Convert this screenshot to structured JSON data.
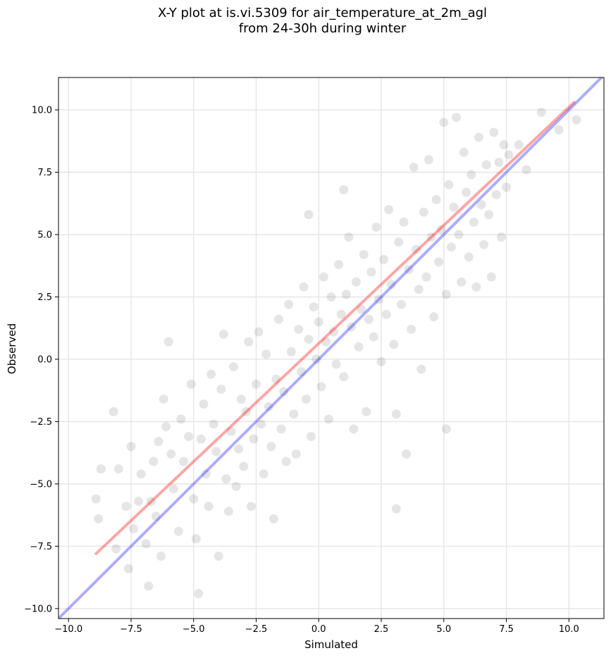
{
  "chart_data": {
    "type": "scatter",
    "title": "X-Y plot at is.vi.5309 for air_temperature_at_2m_agl",
    "subtitle": "from 24-30h during winter",
    "xlabel": "Simulated",
    "ylabel": "Observed",
    "xlim": [
      -10.4,
      11.4
    ],
    "ylim": [
      -10.4,
      11.3
    ],
    "xticks": [
      -10.0,
      -7.5,
      -5.0,
      -2.5,
      0.0,
      2.5,
      5.0,
      7.5,
      10.0
    ],
    "yticks": [
      -10.0,
      -7.5,
      -5.0,
      -2.5,
      0.0,
      2.5,
      5.0,
      7.5,
      10.0
    ],
    "xtick_labels": [
      "−10.0",
      "−7.5",
      "−5.0",
      "−2.5",
      "0.0",
      "2.5",
      "5.0",
      "7.5",
      "10.0"
    ],
    "ytick_labels": [
      "−10.0",
      "−7.5",
      "−5.0",
      "−2.5",
      "0.0",
      "2.5",
      "5.0",
      "7.5",
      "10.0"
    ],
    "grid": true,
    "point_color": "#000000",
    "point_alpha": 0.1,
    "points": [
      [
        -8.9,
        -5.6
      ],
      [
        -8.8,
        -6.4
      ],
      [
        -8.7,
        -4.4
      ],
      [
        -8.2,
        -2.1
      ],
      [
        -8.1,
        -7.6
      ],
      [
        -8.0,
        -4.4
      ],
      [
        -7.7,
        -5.9
      ],
      [
        -7.6,
        -8.4
      ],
      [
        -7.5,
        -3.5
      ],
      [
        -7.4,
        -6.8
      ],
      [
        -7.2,
        -5.7
      ],
      [
        -7.1,
        -4.6
      ],
      [
        -6.9,
        -7.4
      ],
      [
        -6.8,
        -9.1
      ],
      [
        -6.7,
        -5.7
      ],
      [
        -6.6,
        -4.1
      ],
      [
        -6.5,
        -6.3
      ],
      [
        -6.4,
        -3.3
      ],
      [
        -6.3,
        -7.9
      ],
      [
        -6.1,
        -2.7
      ],
      [
        -6.2,
        -1.6
      ],
      [
        -6.0,
        0.7
      ],
      [
        -5.9,
        -3.8
      ],
      [
        -5.8,
        -5.2
      ],
      [
        -5.6,
        -6.9
      ],
      [
        -5.5,
        -2.4
      ],
      [
        -5.4,
        -4.1
      ],
      [
        -5.2,
        -3.1
      ],
      [
        -5.1,
        -1.0
      ],
      [
        -5.0,
        -5.6
      ],
      [
        -4.9,
        -7.2
      ],
      [
        -4.8,
        -9.4
      ],
      [
        -4.7,
        -3.2
      ],
      [
        -4.6,
        -1.8
      ],
      [
        -4.5,
        -4.6
      ],
      [
        -4.4,
        -5.9
      ],
      [
        -4.3,
        -0.6
      ],
      [
        -4.2,
        -2.6
      ],
      [
        -4.1,
        -3.7
      ],
      [
        -4.0,
        -7.9
      ],
      [
        -3.9,
        -1.2
      ],
      [
        -3.8,
        1.0
      ],
      [
        -3.7,
        -4.8
      ],
      [
        -3.6,
        -6.1
      ],
      [
        -3.5,
        -2.9
      ],
      [
        -3.4,
        -0.3
      ],
      [
        -3.3,
        -5.1
      ],
      [
        -3.2,
        -3.6
      ],
      [
        -3.1,
        -1.6
      ],
      [
        -3.0,
        -4.3
      ],
      [
        -2.9,
        -2.1
      ],
      [
        -2.8,
        0.7
      ],
      [
        -2.7,
        -5.9
      ],
      [
        -2.6,
        -3.2
      ],
      [
        -2.5,
        -1.0
      ],
      [
        -2.4,
        1.1
      ],
      [
        -2.3,
        -2.6
      ],
      [
        -2.2,
        -4.6
      ],
      [
        -2.1,
        0.2
      ],
      [
        -2.0,
        -1.9
      ],
      [
        -1.9,
        -3.5
      ],
      [
        -1.8,
        -6.4
      ],
      [
        -1.7,
        -0.8
      ],
      [
        -1.6,
        1.6
      ],
      [
        -1.5,
        -2.8
      ],
      [
        -1.4,
        -1.3
      ],
      [
        -1.3,
        -4.1
      ],
      [
        -1.2,
        2.2
      ],
      [
        -1.1,
        0.3
      ],
      [
        -1.0,
        -2.2
      ],
      [
        -0.9,
        -3.8
      ],
      [
        -0.8,
        1.2
      ],
      [
        -0.7,
        -0.5
      ],
      [
        -0.6,
        2.9
      ],
      [
        -0.5,
        -1.6
      ],
      [
        -0.4,
        0.8
      ],
      [
        -0.4,
        5.8
      ],
      [
        -0.3,
        -3.1
      ],
      [
        -0.2,
        2.1
      ],
      [
        -0.1,
        0.0
      ],
      [
        0.0,
        1.5
      ],
      [
        0.1,
        -1.1
      ],
      [
        0.2,
        3.3
      ],
      [
        0.3,
        0.7
      ],
      [
        0.4,
        -2.4
      ],
      [
        0.5,
        2.5
      ],
      [
        0.6,
        1.1
      ],
      [
        0.7,
        -0.2
      ],
      [
        0.8,
        3.8
      ],
      [
        0.9,
        1.8
      ],
      [
        1.0,
        6.8
      ],
      [
        1.0,
        -0.7
      ],
      [
        1.1,
        2.6
      ],
      [
        1.2,
        4.9
      ],
      [
        1.3,
        1.3
      ],
      [
        1.4,
        -2.8
      ],
      [
        1.5,
        3.1
      ],
      [
        1.6,
        0.5
      ],
      [
        1.7,
        2.0
      ],
      [
        1.8,
        4.2
      ],
      [
        1.9,
        -2.1
      ],
      [
        2.0,
        1.6
      ],
      [
        2.1,
        3.5
      ],
      [
        2.2,
        0.9
      ],
      [
        2.3,
        5.3
      ],
      [
        2.4,
        2.4
      ],
      [
        2.5,
        -0.1
      ],
      [
        2.6,
        4.0
      ],
      [
        2.7,
        1.8
      ],
      [
        2.8,
        6.0
      ],
      [
        2.9,
        3.0
      ],
      [
        3.0,
        0.6
      ],
      [
        3.1,
        -6.0
      ],
      [
        3.1,
        -2.2
      ],
      [
        3.2,
        4.7
      ],
      [
        3.3,
        2.2
      ],
      [
        3.4,
        5.5
      ],
      [
        3.5,
        -3.8
      ],
      [
        3.6,
        3.6
      ],
      [
        3.7,
        1.2
      ],
      [
        3.8,
        7.7
      ],
      [
        3.9,
        4.4
      ],
      [
        4.0,
        2.8
      ],
      [
        4.1,
        -0.4
      ],
      [
        4.2,
        5.9
      ],
      [
        4.3,
        3.3
      ],
      [
        4.4,
        8.0
      ],
      [
        4.5,
        4.9
      ],
      [
        4.6,
        1.7
      ],
      [
        4.7,
        6.4
      ],
      [
        4.8,
        3.9
      ],
      [
        4.9,
        5.2
      ],
      [
        5.0,
        9.5
      ],
      [
        5.1,
        -2.8
      ],
      [
        5.1,
        2.6
      ],
      [
        5.2,
        7.0
      ],
      [
        5.3,
        4.5
      ],
      [
        5.4,
        6.1
      ],
      [
        5.5,
        9.7
      ],
      [
        5.6,
        5.0
      ],
      [
        5.7,
        3.1
      ],
      [
        5.8,
        8.3
      ],
      [
        5.9,
        6.7
      ],
      [
        6.0,
        4.1
      ],
      [
        6.1,
        7.4
      ],
      [
        6.2,
        5.5
      ],
      [
        6.3,
        2.9
      ],
      [
        6.4,
        8.9
      ],
      [
        6.5,
        6.2
      ],
      [
        6.6,
        4.6
      ],
      [
        6.7,
        7.8
      ],
      [
        6.8,
        5.8
      ],
      [
        6.9,
        3.3
      ],
      [
        7.0,
        9.1
      ],
      [
        7.1,
        6.6
      ],
      [
        7.2,
        7.9
      ],
      [
        7.3,
        4.9
      ],
      [
        7.4,
        8.6
      ],
      [
        7.5,
        6.9
      ],
      [
        7.6,
        8.2
      ],
      [
        8.0,
        8.6
      ],
      [
        8.3,
        7.6
      ],
      [
        8.9,
        9.9
      ],
      [
        9.6,
        9.2
      ],
      [
        10.3,
        9.6
      ]
    ],
    "lines": [
      {
        "name": "",
        "color": "#ff0000",
        "alpha": 0.35,
        "x": [
          -8.9,
          10.2
        ],
        "y": [
          -7.8,
          10.3
        ]
      },
      {
        "name": "",
        "color": "#0000ff",
        "alpha": 0.32,
        "x": [
          -10.4,
          11.4
        ],
        "y": [
          -10.4,
          11.4
        ]
      }
    ]
  }
}
